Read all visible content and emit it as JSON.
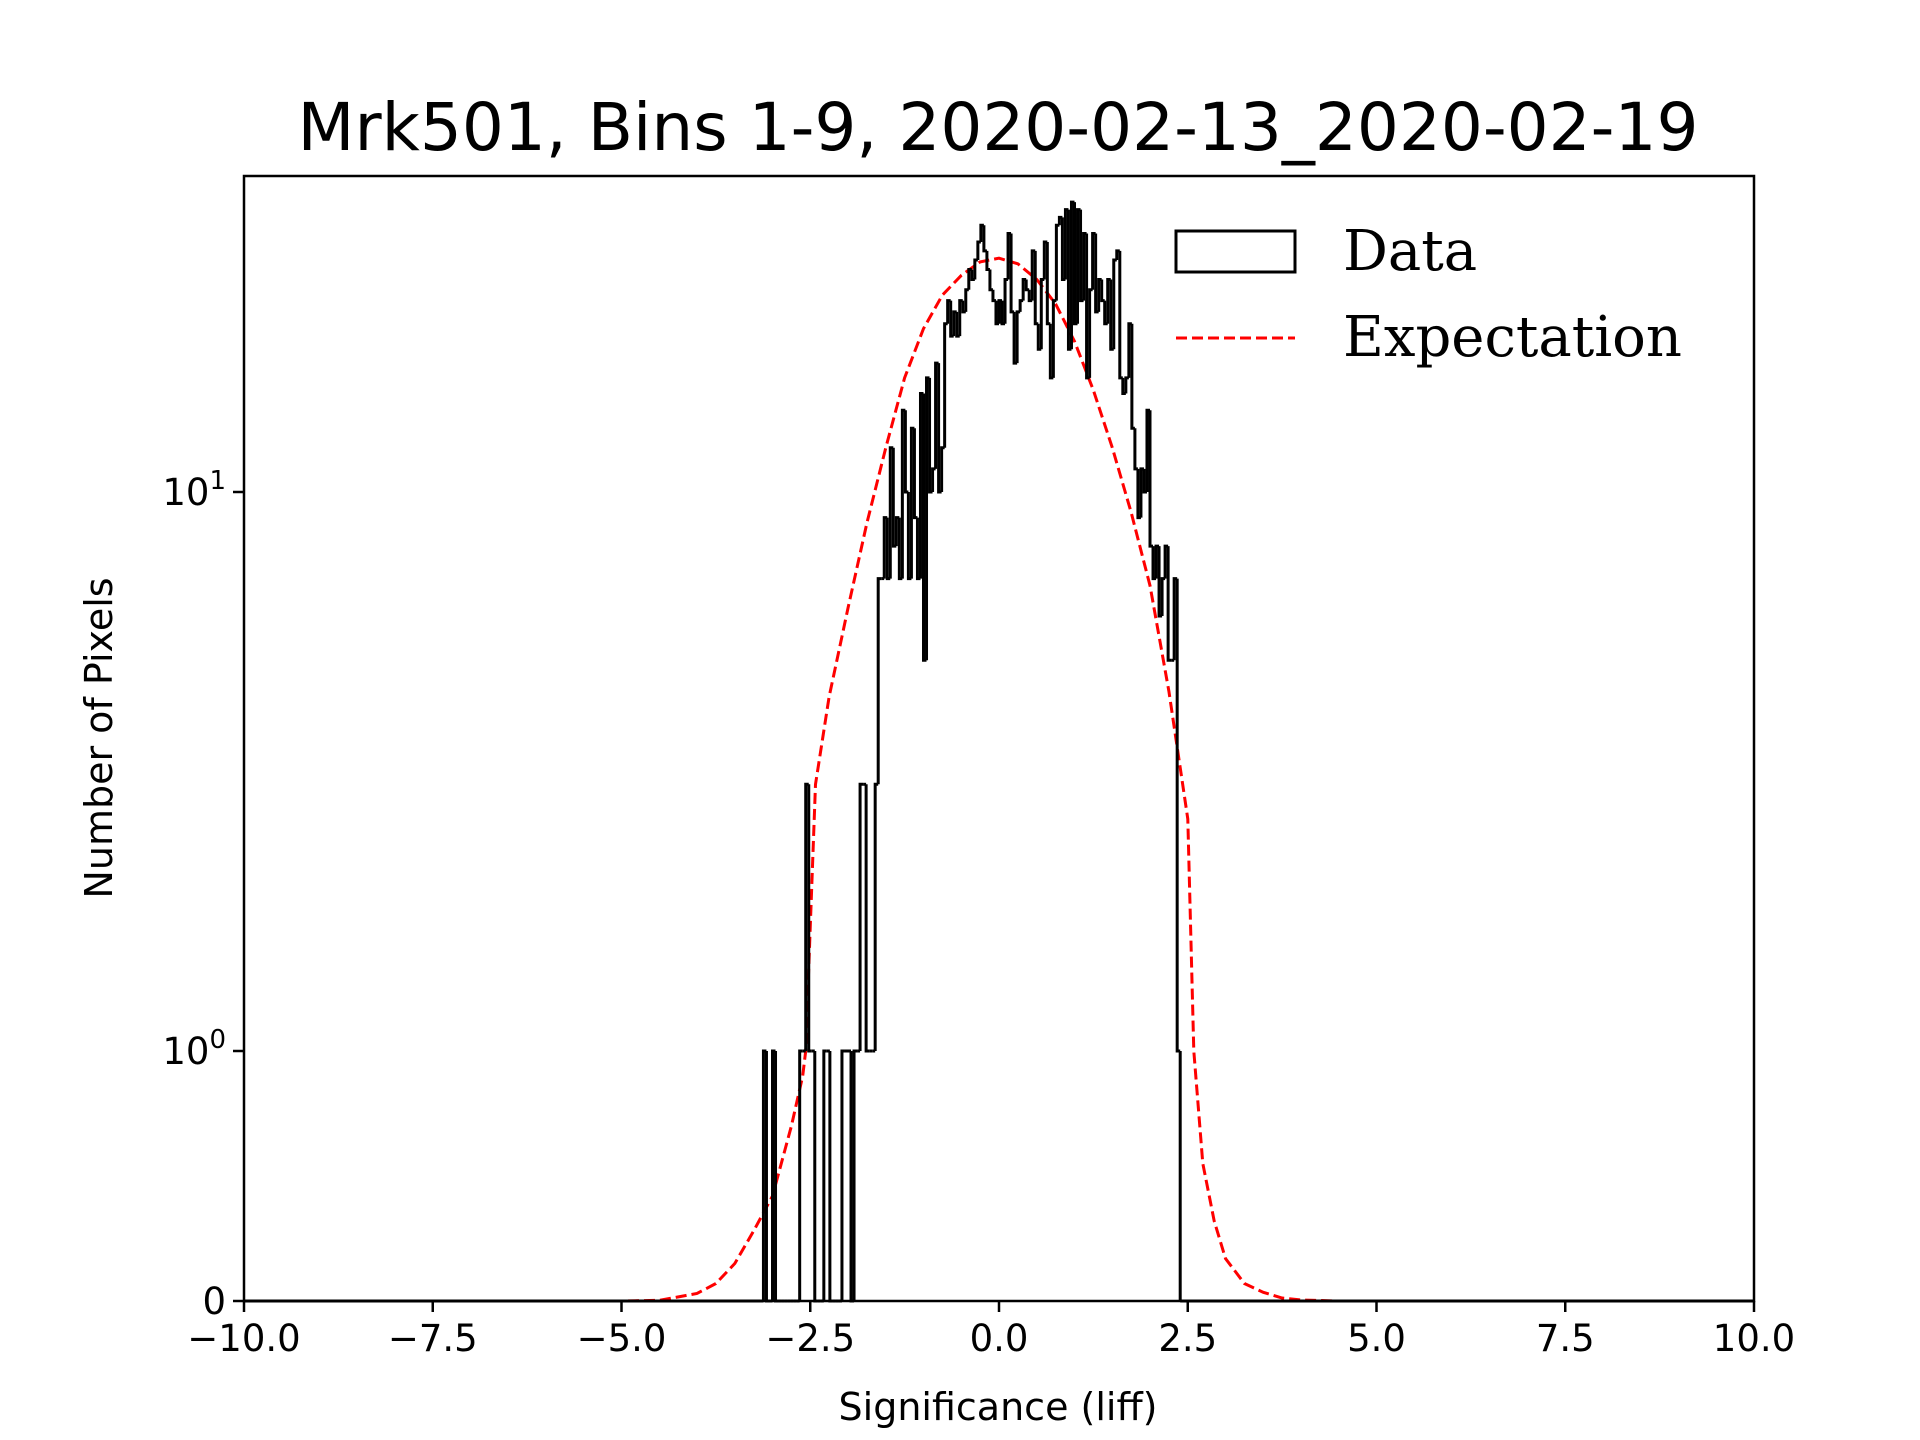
{
  "chart_data": {
    "type": "histogram",
    "title": "Mrk501, Bins 1-9, 2020-02-13_2020-02-19",
    "xlabel": "Significance (liff)",
    "ylabel": "Number of Pixels",
    "xlim": [
      -10,
      10
    ],
    "yscale": "symlog",
    "ylim": [
      0,
      36.7
    ],
    "x_ticks": [
      -10,
      -7.5,
      -5,
      -2.5,
      0,
      2.5,
      5,
      7.5,
      10
    ],
    "x_tick_labels": [
      "−10.0",
      "−7.5",
      "−5.0",
      "−2.5",
      "0.0",
      "2.5",
      "5.0",
      "7.5",
      "10.0"
    ],
    "y_ticks": [
      0,
      1,
      10
    ],
    "y_tick_labels": [
      {
        "base": "0",
        "exp": ""
      },
      {
        "base": "10",
        "exp": "0"
      },
      {
        "base": "10",
        "exp": "1"
      }
    ],
    "grid": false,
    "legend": {
      "placement": "top-right",
      "entries": [
        "Data",
        "Expectation"
      ]
    },
    "colors": {
      "data": "#000000",
      "expectation": "#ff0000"
    },
    "series": [
      {
        "name": "Data",
        "kind": "step-histogram",
        "bin_start": -3.12,
        "bin_width": 0.04,
        "counts": [
          1,
          0,
          0,
          1,
          0,
          0,
          0,
          0,
          0,
          0,
          0,
          0,
          1,
          1,
          3,
          1,
          1,
          0,
          0,
          0,
          1,
          1,
          0,
          0,
          0,
          0,
          1,
          1,
          1,
          0,
          1,
          1,
          3,
          3,
          1,
          1,
          1,
          3,
          7,
          7,
          9,
          7,
          12,
          8,
          9,
          7,
          14,
          10,
          7,
          13,
          9,
          7,
          15,
          5,
          16,
          10,
          11,
          17,
          10,
          12,
          20,
          22,
          19,
          21,
          19,
          22,
          21,
          23,
          25,
          24,
          26,
          28,
          30,
          27,
          25,
          23,
          22,
          20,
          22,
          20,
          24,
          29,
          21,
          17,
          21,
          22,
          24,
          23,
          22,
          27,
          20,
          18,
          24,
          28,
          20,
          16,
          22,
          30,
          31,
          24,
          32,
          18,
          33,
          20,
          32,
          22,
          29,
          16,
          23,
          29,
          21,
          24,
          22,
          20,
          24,
          18,
          26,
          27,
          16,
          15,
          16,
          20,
          13,
          11,
          9,
          11,
          10,
          14,
          8,
          7,
          8,
          6,
          7,
          8,
          5,
          5,
          7,
          1
        ]
      },
      {
        "name": "Expectation",
        "kind": "line",
        "x": [
          -10,
          -5,
          -4.5,
          -4,
          -3.75,
          -3.5,
          -3.25,
          -3,
          -2.75,
          -2.6,
          -2.56,
          -2.43,
          -2.25,
          -2,
          -1.75,
          -1.5,
          -1.25,
          -1,
          -0.75,
          -0.5,
          -0.25,
          0,
          0.25,
          0.5,
          0.75,
          1,
          1.25,
          1.5,
          1.75,
          2,
          2.25,
          2.5,
          2.58,
          2.7,
          2.85,
          3,
          3.25,
          3.5,
          3.75,
          4,
          4.5,
          5,
          10
        ],
        "y": [
          0,
          0,
          0.003,
          0.03,
          0.07,
          0.15,
          0.28,
          0.42,
          0.7,
          0.9,
          1.0,
          3.0,
          4.3,
          6.2,
          8.8,
          12,
          16,
          19.6,
          22.5,
          24.4,
          25.8,
          26.2,
          25.6,
          24,
          21.7,
          18.6,
          15.2,
          12,
          9.2,
          6.8,
          4.4,
          2.6,
          1.0,
          0.55,
          0.32,
          0.17,
          0.07,
          0.035,
          0.012,
          0.004,
          0,
          0,
          0
        ]
      }
    ]
  }
}
